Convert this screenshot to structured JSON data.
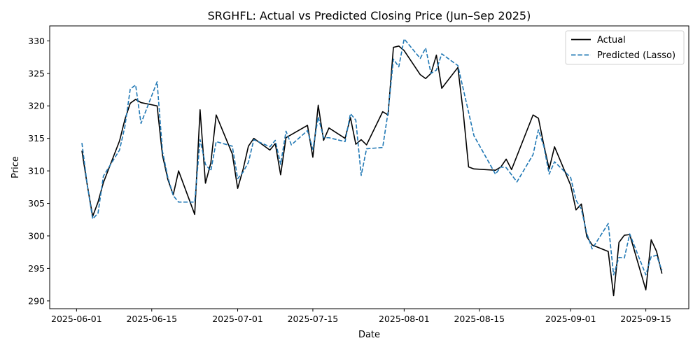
{
  "chart_data": {
    "type": "line",
    "title": "SRGHFL: Actual vs Predicted Closing Price (Jun–Sep 2025)",
    "xlabel": "Date",
    "ylabel": "Price",
    "x_ticks": [
      "2025-06-01",
      "2025-06-15",
      "2025-07-01",
      "2025-07-15",
      "2025-08-01",
      "2025-08-15",
      "2025-09-01",
      "2025-09-15"
    ],
    "y_ticks": [
      290,
      295,
      300,
      305,
      310,
      315,
      320,
      325,
      330
    ],
    "ylim": [
      288.8,
      332.3
    ],
    "xlim": [
      "2025-05-27",
      "2025-09-23"
    ],
    "grid": false,
    "legend_position": "top-right",
    "series": [
      {
        "name": "Actual",
        "color": "#000000",
        "style": "solid",
        "points": [
          [
            "2025-06-02",
            313.1
          ],
          [
            "2025-06-03",
            307.8
          ],
          [
            "2025-06-04",
            303.0
          ],
          [
            "2025-06-05",
            305.2
          ],
          [
            "2025-06-06",
            308.2
          ],
          [
            "2025-06-09",
            314.6
          ],
          [
            "2025-06-10",
            317.9
          ],
          [
            "2025-06-11",
            320.4
          ],
          [
            "2025-06-12",
            321.0
          ],
          [
            "2025-06-13",
            320.5
          ],
          [
            "2025-06-16",
            320.0
          ],
          [
            "2025-06-17",
            312.4
          ],
          [
            "2025-06-18",
            308.7
          ],
          [
            "2025-06-19",
            306.3
          ],
          [
            "2025-06-20",
            310.0
          ],
          [
            "2025-06-23",
            303.3
          ],
          [
            "2025-06-24",
            319.4
          ],
          [
            "2025-06-25",
            308.1
          ],
          [
            "2025-06-26",
            311.2
          ],
          [
            "2025-06-27",
            318.6
          ],
          [
            "2025-06-30",
            312.6
          ],
          [
            "2025-07-01",
            307.3
          ],
          [
            "2025-07-02",
            310.2
          ],
          [
            "2025-07-03",
            313.8
          ],
          [
            "2025-07-04",
            315.0
          ],
          [
            "2025-07-07",
            313.2
          ],
          [
            "2025-07-08",
            314.2
          ],
          [
            "2025-07-09",
            309.4
          ],
          [
            "2025-07-10",
            315.1
          ],
          [
            "2025-07-14",
            317.0
          ],
          [
            "2025-07-15",
            312.1
          ],
          [
            "2025-07-16",
            320.1
          ],
          [
            "2025-07-17",
            314.7
          ],
          [
            "2025-07-18",
            316.6
          ],
          [
            "2025-07-21",
            315.0
          ],
          [
            "2025-07-22",
            318.2
          ],
          [
            "2025-07-23",
            314.1
          ],
          [
            "2025-07-24",
            314.8
          ],
          [
            "2025-07-25",
            314.0
          ],
          [
            "2025-07-28",
            319.1
          ],
          [
            "2025-07-29",
            318.6
          ],
          [
            "2025-07-30",
            329.0
          ],
          [
            "2025-07-31",
            329.2
          ],
          [
            "2025-08-01",
            328.5
          ],
          [
            "2025-08-04",
            324.8
          ],
          [
            "2025-08-05",
            324.2
          ],
          [
            "2025-08-06",
            325.0
          ],
          [
            "2025-08-07",
            327.8
          ],
          [
            "2025-08-08",
            322.7
          ],
          [
            "2025-08-11",
            325.9
          ],
          [
            "2025-08-12",
            319.0
          ],
          [
            "2025-08-13",
            310.6
          ],
          [
            "2025-08-14",
            310.3
          ],
          [
            "2025-08-18",
            310.1
          ],
          [
            "2025-08-19",
            310.6
          ],
          [
            "2025-08-20",
            311.8
          ],
          [
            "2025-08-21",
            310.2
          ],
          [
            "2025-08-25",
            318.6
          ],
          [
            "2025-08-26",
            318.1
          ],
          [
            "2025-08-27",
            314.0
          ],
          [
            "2025-08-28",
            310.3
          ],
          [
            "2025-08-29",
            313.7
          ],
          [
            "2025-09-01",
            307.8
          ],
          [
            "2025-09-02",
            304.0
          ],
          [
            "2025-09-03",
            304.9
          ],
          [
            "2025-09-04",
            299.9
          ],
          [
            "2025-09-05",
            298.6
          ],
          [
            "2025-09-08",
            297.6
          ],
          [
            "2025-09-09",
            290.8
          ],
          [
            "2025-09-10",
            299.0
          ],
          [
            "2025-09-11",
            300.1
          ],
          [
            "2025-09-12",
            300.2
          ],
          [
            "2025-09-15",
            291.7
          ],
          [
            "2025-09-16",
            299.4
          ],
          [
            "2025-09-17",
            297.6
          ],
          [
            "2025-09-18",
            294.2
          ]
        ]
      },
      {
        "name": "Predicted (Lasso)",
        "color": "#1f77b4",
        "style": "dashed",
        "points": [
          [
            "2025-06-02",
            314.3
          ],
          [
            "2025-06-03",
            307.8
          ],
          [
            "2025-06-04",
            302.6
          ],
          [
            "2025-06-05",
            303.5
          ],
          [
            "2025-06-06",
            309.2
          ],
          [
            "2025-06-09",
            313.2
          ],
          [
            "2025-06-10",
            316.8
          ],
          [
            "2025-06-11",
            322.6
          ],
          [
            "2025-06-12",
            323.2
          ],
          [
            "2025-06-13",
            317.3
          ],
          [
            "2025-06-16",
            323.7
          ],
          [
            "2025-06-17",
            313.0
          ],
          [
            "2025-06-18",
            309.0
          ],
          [
            "2025-06-19",
            306.2
          ],
          [
            "2025-06-20",
            305.2
          ],
          [
            "2025-06-23",
            305.2
          ],
          [
            "2025-06-24",
            314.8
          ],
          [
            "2025-06-25",
            311.0
          ],
          [
            "2025-06-26",
            310.0
          ],
          [
            "2025-06-27",
            314.5
          ],
          [
            "2025-06-30",
            313.8
          ],
          [
            "2025-07-01",
            308.8
          ],
          [
            "2025-07-02",
            309.8
          ],
          [
            "2025-07-03",
            311.3
          ],
          [
            "2025-07-04",
            314.8
          ],
          [
            "2025-07-07",
            313.7
          ],
          [
            "2025-07-08",
            314.7
          ],
          [
            "2025-07-09",
            311.0
          ],
          [
            "2025-07-10",
            316.1
          ],
          [
            "2025-07-11",
            314.0
          ],
          [
            "2025-07-14",
            316.2
          ],
          [
            "2025-07-15",
            313.3
          ],
          [
            "2025-07-16",
            318.3
          ],
          [
            "2025-07-17",
            315.1
          ],
          [
            "2025-07-18",
            315.1
          ],
          [
            "2025-07-21",
            314.5
          ],
          [
            "2025-07-22",
            318.8
          ],
          [
            "2025-07-23",
            317.8
          ],
          [
            "2025-07-24",
            309.3
          ],
          [
            "2025-07-25",
            313.4
          ],
          [
            "2025-07-28",
            313.6
          ],
          [
            "2025-07-29",
            319.0
          ],
          [
            "2025-07-30",
            327.2
          ],
          [
            "2025-07-31",
            326.0
          ],
          [
            "2025-08-01",
            330.3
          ],
          [
            "2025-08-04",
            327.3
          ],
          [
            "2025-08-05",
            328.9
          ],
          [
            "2025-08-06",
            325.0
          ],
          [
            "2025-08-07",
            325.5
          ],
          [
            "2025-08-08",
            328.0
          ],
          [
            "2025-08-11",
            326.2
          ],
          [
            "2025-08-14",
            315.4
          ],
          [
            "2025-08-18",
            309.5
          ],
          [
            "2025-08-19",
            310.6
          ],
          [
            "2025-08-20",
            310.5
          ],
          [
            "2025-08-22",
            308.3
          ],
          [
            "2025-08-25",
            312.5
          ],
          [
            "2025-08-26",
            316.3
          ],
          [
            "2025-08-27",
            313.8
          ],
          [
            "2025-08-28",
            309.5
          ],
          [
            "2025-08-29",
            311.4
          ],
          [
            "2025-09-01",
            309.0
          ],
          [
            "2025-09-02",
            305.5
          ],
          [
            "2025-09-03",
            304.1
          ],
          [
            "2025-09-04",
            300.4
          ],
          [
            "2025-09-05",
            298.0
          ],
          [
            "2025-09-08",
            301.9
          ],
          [
            "2025-09-09",
            294.0
          ],
          [
            "2025-09-10",
            296.7
          ],
          [
            "2025-09-11",
            296.6
          ],
          [
            "2025-09-12",
            300.3
          ],
          [
            "2025-09-15",
            294.0
          ],
          [
            "2025-09-16",
            296.8
          ],
          [
            "2025-09-17",
            297.0
          ],
          [
            "2025-09-18",
            294.7
          ]
        ]
      }
    ]
  }
}
